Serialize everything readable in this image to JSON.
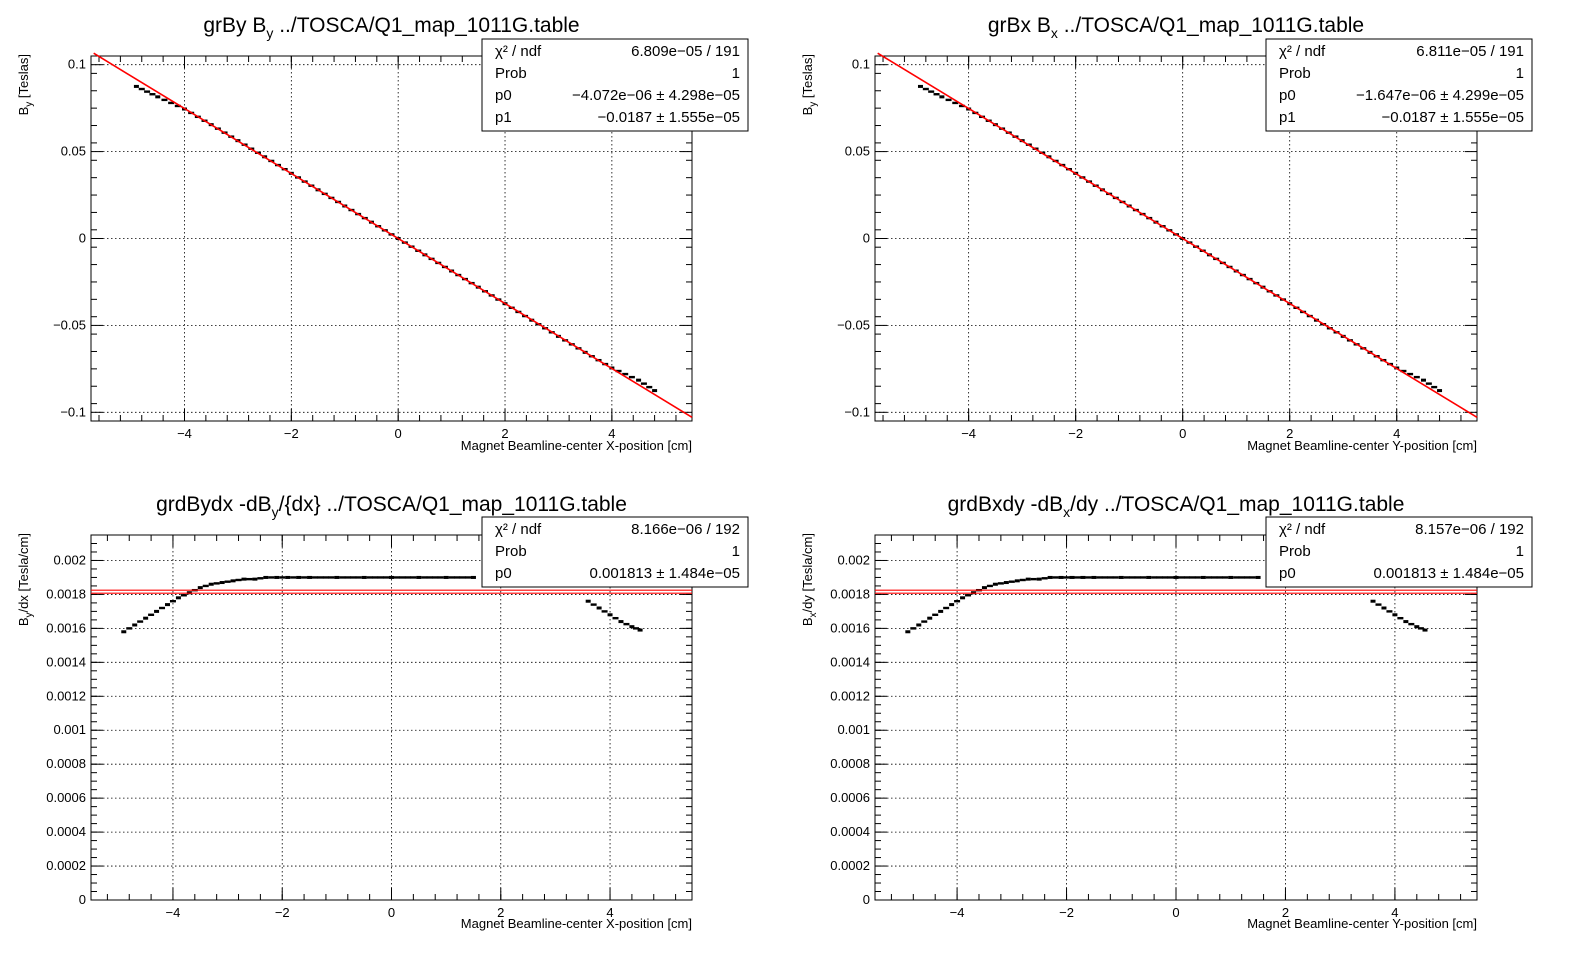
{
  "charts": [
    {
      "title": "grBy  B",
      "title_sub": "y",
      "title_rest": " ../TOSCA/Q1_map_1011G.table",
      "ylabel": "B",
      "ylabel_sub": "y",
      "ylabel_rest": " [Teslas]",
      "xlabel": "Magnet Beamline-center X-position [cm]",
      "yticks": [
        "0.1",
        "0.05",
        "0",
        "−0.05",
        "−0.1"
      ],
      "xticks": [
        "−4",
        "−2",
        "0",
        "2",
        "4"
      ],
      "stats": [
        {
          "label": "χ² / ndf",
          "value": "6.809e−05 / 191"
        },
        {
          "label": "Prob",
          "value": "1"
        },
        {
          "label": "p0",
          "value": "−4.072e−06 ± 4.298e−05"
        },
        {
          "label": "p1",
          "value": "−0.0187 ± 1.555e−05"
        }
      ]
    },
    {
      "title": "grBx  B",
      "title_sub": "x",
      "title_rest": " ../TOSCA/Q1_map_1011G.table",
      "ylabel": "B",
      "ylabel_sub": "y",
      "ylabel_rest": " [Teslas]",
      "xlabel": "Magnet Beamline-center Y-position [cm]",
      "yticks": [
        "0.1",
        "0.05",
        "0",
        "−0.05",
        "−0.1"
      ],
      "xticks": [
        "−4",
        "−2",
        "0",
        "2",
        "4"
      ],
      "stats": [
        {
          "label": "χ² / ndf",
          "value": "6.811e−05 / 191"
        },
        {
          "label": "Prob",
          "value": "1"
        },
        {
          "label": "p0",
          "value": "−1.647e−06 ± 4.299e−05"
        },
        {
          "label": "p1",
          "value": "−0.0187 ± 1.555e−05"
        }
      ]
    },
    {
      "title": "grdBydx  -dB",
      "title_sub": "y",
      "title_rest": "/{dx} ../TOSCA/Q1_map_1011G.table",
      "ylabel": "B",
      "ylabel_sub": "y",
      "ylabel_rest": "/dx [Tesla/cm]",
      "xlabel": "Magnet Beamline-center X-position [cm]",
      "yticks": [
        "0.002",
        "0.0018",
        "0.0016",
        "0.0014",
        "0.0012",
        "0.001",
        "0.0008",
        "0.0006",
        "0.0004",
        "0.0002",
        "0"
      ],
      "xticks": [
        "−4",
        "−2",
        "0",
        "2",
        "4"
      ],
      "stats": [
        {
          "label": "χ² / ndf",
          "value": "8.166e−06 / 192"
        },
        {
          "label": "Prob",
          "value": "1"
        },
        {
          "label": "p0",
          "value": "0.001813 ± 1.484e−05"
        }
      ]
    },
    {
      "title": "grdBxdy  -dB",
      "title_sub": "x",
      "title_rest": "/dy ../TOSCA/Q1_map_1011G.table",
      "ylabel": "B",
      "ylabel_sub": "x",
      "ylabel_rest": "/dy [Tesla/cm]",
      "xlabel": "Magnet Beamline-center Y-position [cm]",
      "yticks": [
        "0.002",
        "0.0018",
        "0.0016",
        "0.0014",
        "0.0012",
        "0.001",
        "0.0008",
        "0.0006",
        "0.0004",
        "0.0002",
        "0"
      ],
      "xticks": [
        "−4",
        "−2",
        "0",
        "2",
        "4"
      ],
      "stats": [
        {
          "label": "χ² / ndf",
          "value": "8.157e−06 / 192"
        },
        {
          "label": "Prob",
          "value": "1"
        },
        {
          "label": "p0",
          "value": "0.001813 ± 1.484e−05"
        }
      ]
    }
  ],
  "chart_data": [
    {
      "type": "scatter",
      "title": "grBy  B_y ../TOSCA/Q1_map_1011G.table",
      "xlabel": "Magnet Beamline-center X-position [cm]",
      "ylabel": "B_y [Teslas]",
      "xlim": [
        -5.75,
        5.5
      ],
      "ylim": [
        -0.105,
        0.105
      ],
      "grid": true,
      "legend": "top-right",
      "colors": {
        "data": "#000000",
        "fit": "#ff0000"
      },
      "series": [
        {
          "x": [
            -4.9,
            -4.5,
            -4.0,
            -3.5,
            -3.0,
            -2.5,
            -2.0,
            -1.5,
            -1.0,
            -0.5,
            0.0,
            0.5,
            1.0,
            1.5,
            2.0,
            2.5,
            3.0,
            3.5,
            4.0,
            4.5,
            4.8
          ],
          "values": [
            0.0875,
            0.0815,
            0.0745,
            0.0655,
            0.0563,
            0.047,
            0.0375,
            0.028,
            0.0187,
            0.0094,
            0.0,
            -0.0094,
            -0.0187,
            -0.028,
            -0.0375,
            -0.047,
            -0.0563,
            -0.0655,
            -0.0745,
            -0.0815,
            -0.0875
          ]
        }
      ],
      "fit": {
        "intercept": -4.072e-06,
        "slope": -0.0187,
        "x_range": [
          -5.7,
          5.5
        ]
      }
    },
    {
      "type": "scatter",
      "title": "grBx  B_x ../TOSCA/Q1_map_1011G.table",
      "xlabel": "Magnet Beamline-center Y-position [cm]",
      "ylabel": "B_y [Teslas]",
      "xlim": [
        -5.75,
        5.5
      ],
      "ylim": [
        -0.105,
        0.105
      ],
      "grid": true,
      "legend": "top-right",
      "colors": {
        "data": "#000000",
        "fit": "#ff0000"
      },
      "series": [
        {
          "x": [
            -4.9,
            -4.5,
            -4.0,
            -3.5,
            -3.0,
            -2.5,
            -2.0,
            -1.5,
            -1.0,
            -0.5,
            0.0,
            0.5,
            1.0,
            1.5,
            2.0,
            2.5,
            3.0,
            3.5,
            4.0,
            4.5,
            4.8
          ],
          "values": [
            0.0875,
            0.0815,
            0.0745,
            0.0655,
            0.0563,
            0.047,
            0.0375,
            0.028,
            0.0187,
            0.0094,
            0.0,
            -0.0094,
            -0.0187,
            -0.028,
            -0.0375,
            -0.047,
            -0.0563,
            -0.0655,
            -0.0745,
            -0.0815,
            -0.0875
          ]
        }
      ],
      "fit": {
        "intercept": -1.647e-06,
        "slope": -0.0187,
        "x_range": [
          -5.7,
          5.5
        ]
      }
    },
    {
      "type": "scatter",
      "title": "grdBydx  -dB_y/{dx} ../TOSCA/Q1_map_1011G.table",
      "xlabel": "Magnet Beamline-center X-position [cm]",
      "ylabel": "B_y/dx [Tesla/cm]",
      "xlim": [
        -5.5,
        5.5
      ],
      "ylim": [
        0,
        0.00215
      ],
      "grid": true,
      "legend": "top-right",
      "colors": {
        "data": "#000000",
        "fit": "#ff0000"
      },
      "series": [
        {
          "x": [
            -4.9,
            -4.7,
            -4.5,
            -4.3,
            -4.1,
            -3.9,
            -3.7,
            -3.5,
            -3.3,
            -3.1,
            -2.9,
            -2.7,
            -2.5,
            -2.3,
            -2.1,
            -1.9,
            -1.7,
            -1.5,
            -1.0,
            -0.5,
            0.0,
            0.5,
            1.0,
            1.5,
            3.6,
            3.8,
            4.0,
            4.2,
            4.4,
            4.55
          ],
          "values": [
            0.00158,
            0.00162,
            0.00166,
            0.0017,
            0.00174,
            0.00178,
            0.00181,
            0.00184,
            0.00186,
            0.00187,
            0.00188,
            0.00189,
            0.00189,
            0.0019,
            0.0019,
            0.0019,
            0.0019,
            0.0019,
            0.0019,
            0.0019,
            0.0019,
            0.0019,
            0.0019,
            0.0019,
            0.00176,
            0.00172,
            0.00168,
            0.00164,
            0.00161,
            0.00159
          ]
        }
      ],
      "fit": {
        "value": 0.001813,
        "x_range": [
          -5.5,
          5.5
        ]
      }
    },
    {
      "type": "scatter",
      "title": "grdBxdy  -dB_x/dy ../TOSCA/Q1_map_1011G.table",
      "xlabel": "Magnet Beamline-center Y-position [cm]",
      "ylabel": "B_x/dy [Tesla/cm]",
      "xlim": [
        -5.5,
        5.5
      ],
      "ylim": [
        0,
        0.00215
      ],
      "grid": true,
      "legend": "top-right",
      "colors": {
        "data": "#000000",
        "fit": "#ff0000"
      },
      "series": [
        {
          "x": [
            -4.9,
            -4.7,
            -4.5,
            -4.3,
            -4.1,
            -3.9,
            -3.7,
            -3.5,
            -3.3,
            -3.1,
            -2.9,
            -2.7,
            -2.5,
            -2.3,
            -2.1,
            -1.9,
            -1.7,
            -1.5,
            -1.0,
            -0.5,
            0.0,
            0.5,
            1.0,
            1.5,
            3.6,
            3.8,
            4.0,
            4.2,
            4.4,
            4.55
          ],
          "values": [
            0.00158,
            0.00162,
            0.00166,
            0.0017,
            0.00174,
            0.00178,
            0.00181,
            0.00184,
            0.00186,
            0.00187,
            0.00188,
            0.00189,
            0.00189,
            0.0019,
            0.0019,
            0.0019,
            0.0019,
            0.0019,
            0.0019,
            0.0019,
            0.0019,
            0.0019,
            0.0019,
            0.0019,
            0.00176,
            0.00172,
            0.00168,
            0.00164,
            0.00161,
            0.00159
          ]
        }
      ],
      "fit": {
        "value": 0.001813,
        "x_range": [
          -5.5,
          5.5
        ]
      }
    }
  ]
}
